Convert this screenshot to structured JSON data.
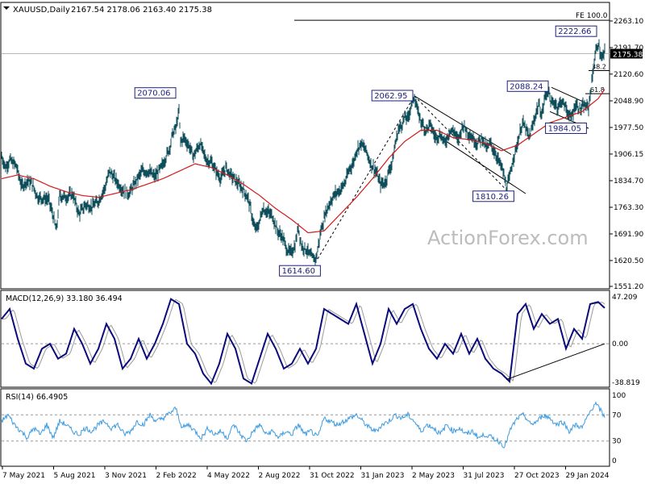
{
  "header": {
    "symbol_label": "XAUUSD,Daily",
    "ohlc": "2167.54 2178.06 2163.40 2175.38"
  },
  "watermark": "ActionForex.com",
  "chart_data": {
    "type": "line",
    "series_kind": "ohlc-bars",
    "price_axis_ticks": [
      "2263.10",
      "2191.70",
      "2120.60",
      "2048.90",
      "1977.50",
      "1906.15",
      "1834.70",
      "1763.30",
      "1691.90",
      "1620.50",
      "1551.20"
    ],
    "price_tick_values": [
      2263.1,
      2191.7,
      2120.6,
      2048.9,
      1977.5,
      1906.15,
      1834.7,
      1763.3,
      1691.9,
      1620.5,
      1551.2
    ],
    "current_price": "2175.38",
    "date_axis_labels": [
      "7 May 2021",
      "5 Aug 2021",
      "3 Nov 2021",
      "2 Feb 2022",
      "4 May 2022",
      "2 Aug 2022",
      "31 Oct 2022",
      "31 Jan 2023",
      "2 May 2023",
      "31 Jul 2023",
      "27 Oct 2023",
      "29 Jan 2024"
    ],
    "price_anchors": [
      [
        0,
        1900
      ],
      [
        5,
        1870
      ],
      [
        10,
        1890
      ],
      [
        18,
        1875
      ],
      [
        25,
        1820
      ],
      [
        32,
        1835
      ],
      [
        38,
        1825
      ],
      [
        45,
        1790
      ],
      [
        58,
        1785
      ],
      [
        64,
        1740
      ],
      [
        68,
        1700
      ],
      [
        72,
        1795
      ],
      [
        80,
        1790
      ],
      [
        88,
        1800
      ],
      [
        96,
        1745
      ],
      [
        104,
        1770
      ],
      [
        112,
        1765
      ],
      [
        120,
        1780
      ],
      [
        128,
        1815
      ],
      [
        134,
        1860
      ],
      [
        142,
        1835
      ],
      [
        150,
        1810
      ],
      [
        158,
        1800
      ],
      [
        166,
        1830
      ],
      [
        174,
        1860
      ],
      [
        182,
        1860
      ],
      [
        190,
        1845
      ],
      [
        198,
        1870
      ],
      [
        204,
        1900
      ],
      [
        208,
        1920
      ],
      [
        212,
        1960
      ],
      [
        216,
        1975
      ],
      [
        220,
        2020
      ],
      [
        222,
        1940
      ],
      [
        226,
        1950
      ],
      [
        232,
        1930
      ],
      [
        238,
        1900
      ],
      [
        246,
        1935
      ],
      [
        254,
        1890
      ],
      [
        260,
        1885
      ],
      [
        266,
        1860
      ],
      [
        272,
        1840
      ],
      [
        278,
        1870
      ],
      [
        284,
        1850
      ],
      [
        292,
        1830
      ],
      [
        300,
        1810
      ],
      [
        306,
        1785
      ],
      [
        310,
        1745
      ],
      [
        314,
        1705
      ],
      [
        318,
        1710
      ],
      [
        324,
        1760
      ],
      [
        330,
        1750
      ],
      [
        336,
        1740
      ],
      [
        342,
        1700
      ],
      [
        348,
        1685
      ],
      [
        354,
        1650
      ],
      [
        358,
        1640
      ],
      [
        364,
        1660
      ],
      [
        368,
        1710
      ],
      [
        372,
        1660
      ],
      [
        378,
        1650
      ],
      [
        384,
        1630
      ],
      [
        390,
        1625
      ],
      [
        396,
        1700
      ],
      [
        402,
        1750
      ],
      [
        408,
        1780
      ],
      [
        414,
        1800
      ],
      [
        420,
        1810
      ],
      [
        426,
        1830
      ],
      [
        432,
        1870
      ],
      [
        436,
        1880
      ],
      [
        440,
        1915
      ],
      [
        446,
        1935
      ],
      [
        452,
        1915
      ],
      [
        458,
        1880
      ],
      [
        464,
        1860
      ],
      [
        470,
        1825
      ],
      [
        476,
        1830
      ],
      [
        480,
        1860
      ],
      [
        484,
        1880
      ],
      [
        488,
        1930
      ],
      [
        492,
        1970
      ],
      [
        496,
        1985
      ],
      [
        500,
        2005
      ],
      [
        504,
        2000
      ],
      [
        508,
        2040
      ],
      [
        512,
        2062
      ],
      [
        516,
        2020
      ],
      [
        520,
        1995
      ],
      [
        526,
        1970
      ],
      [
        532,
        1985
      ],
      [
        538,
        1950
      ],
      [
        544,
        1960
      ],
      [
        550,
        1935
      ],
      [
        556,
        1970
      ],
      [
        562,
        1965
      ],
      [
        566,
        1940
      ],
      [
        572,
        1985
      ],
      [
        578,
        1965
      ],
      [
        584,
        1950
      ],
      [
        590,
        1935
      ],
      [
        596,
        1950
      ],
      [
        602,
        1920
      ],
      [
        606,
        1935
      ],
      [
        612,
        1910
      ],
      [
        618,
        1880
      ],
      [
        622,
        1860
      ],
      [
        626,
        1815
      ],
      [
        630,
        1840
      ],
      [
        634,
        1890
      ],
      [
        638,
        1920
      ],
      [
        642,
        1955
      ],
      [
        646,
        1990
      ],
      [
        650,
        1975
      ],
      [
        654,
        1950
      ],
      [
        658,
        1975
      ],
      [
        662,
        2010
      ],
      [
        666,
        2040
      ],
      [
        670,
        2010
      ],
      [
        674,
        2060
      ],
      [
        678,
        2080
      ],
      [
        682,
        2040
      ],
      [
        686,
        2045
      ],
      [
        690,
        2030
      ],
      [
        694,
        2050
      ],
      [
        700,
        2030
      ],
      [
        706,
        2000
      ],
      [
        712,
        2040
      ],
      [
        718,
        2025
      ],
      [
        722,
        2035
      ],
      [
        728,
        2030
      ],
      [
        732,
        2100
      ],
      [
        736,
        2170
      ],
      [
        740,
        2205
      ],
      [
        744,
        2160
      ],
      [
        748,
        2178
      ]
    ],
    "moving_average_anchors": [
      [
        0,
        1840
      ],
      [
        20,
        1850
      ],
      [
        40,
        1840
      ],
      [
        60,
        1820
      ],
      [
        80,
        1805
      ],
      [
        100,
        1795
      ],
      [
        120,
        1790
      ],
      [
        140,
        1800
      ],
      [
        160,
        1810
      ],
      [
        180,
        1825
      ],
      [
        200,
        1840
      ],
      [
        220,
        1860
      ],
      [
        240,
        1880
      ],
      [
        260,
        1870
      ],
      [
        280,
        1850
      ],
      [
        300,
        1825
      ],
      [
        320,
        1795
      ],
      [
        340,
        1760
      ],
      [
        360,
        1730
      ],
      [
        380,
        1695
      ],
      [
        400,
        1700
      ],
      [
        420,
        1745
      ],
      [
        440,
        1790
      ],
      [
        460,
        1840
      ],
      [
        480,
        1895
      ],
      [
        500,
        1940
      ],
      [
        520,
        1970
      ],
      [
        540,
        1970
      ],
      [
        560,
        1950
      ],
      [
        580,
        1945
      ],
      [
        600,
        1935
      ],
      [
        620,
        1915
      ],
      [
        640,
        1930
      ],
      [
        660,
        1960
      ],
      [
        680,
        1990
      ],
      [
        700,
        2005
      ],
      [
        720,
        2020
      ],
      [
        740,
        2055
      ],
      [
        748,
        2080
      ]
    ],
    "annotations": [
      {
        "label": "2070.06",
        "price": 2070.06,
        "bar": 220
      },
      {
        "label": "1614.60",
        "price": 1614.6,
        "bar": 390
      },
      {
        "label": "2062.95",
        "price": 2062.95,
        "bar": 512
      },
      {
        "label": "1810.26",
        "price": 1810.26,
        "bar": 626
      },
      {
        "label": "2088.24",
        "price": 2088.24,
        "bar": 680
      },
      {
        "label": "1984.05",
        "price": 1984.05,
        "bar": 718
      },
      {
        "label": "2222.66",
        "price": 2222.66,
        "bar": 740
      }
    ],
    "fib_levels": [
      {
        "label": "FE 100.0",
        "price": 2265
      },
      {
        "label": "38.2",
        "price": 2130
      },
      {
        "label": "61.8",
        "price": 2068
      }
    ],
    "macd": {
      "label": "MACD(12,26,9) 33.180 36.494",
      "ticks": [
        "47.209",
        "0.00",
        "-38.819"
      ],
      "tick_values": [
        47.209,
        0,
        -38.819
      ],
      "anchors": [
        [
          0,
          25
        ],
        [
          10,
          35
        ],
        [
          20,
          5
        ],
        [
          30,
          -20
        ],
        [
          40,
          -25
        ],
        [
          50,
          -5
        ],
        [
          60,
          0
        ],
        [
          70,
          -15
        ],
        [
          80,
          -10
        ],
        [
          90,
          15
        ],
        [
          100,
          0
        ],
        [
          110,
          -20
        ],
        [
          120,
          -5
        ],
        [
          130,
          20
        ],
        [
          140,
          5
        ],
        [
          150,
          -25
        ],
        [
          160,
          -15
        ],
        [
          170,
          5
        ],
        [
          180,
          -15
        ],
        [
          190,
          0
        ],
        [
          200,
          20
        ],
        [
          210,
          45
        ],
        [
          220,
          40
        ],
        [
          230,
          0
        ],
        [
          240,
          -10
        ],
        [
          250,
          -30
        ],
        [
          260,
          -40
        ],
        [
          270,
          -20
        ],
        [
          280,
          10
        ],
        [
          290,
          -5
        ],
        [
          300,
          -35
        ],
        [
          310,
          -40
        ],
        [
          320,
          -15
        ],
        [
          330,
          10
        ],
        [
          340,
          -5
        ],
        [
          350,
          -25
        ],
        [
          360,
          -20
        ],
        [
          370,
          -5
        ],
        [
          380,
          -20
        ],
        [
          390,
          -5
        ],
        [
          400,
          35
        ],
        [
          410,
          30
        ],
        [
          420,
          25
        ],
        [
          430,
          20
        ],
        [
          440,
          40
        ],
        [
          450,
          10
        ],
        [
          460,
          -20
        ],
        [
          470,
          0
        ],
        [
          480,
          35
        ],
        [
          490,
          20
        ],
        [
          500,
          35
        ],
        [
          510,
          40
        ],
        [
          520,
          15
        ],
        [
          530,
          -5
        ],
        [
          540,
          -15
        ],
        [
          550,
          0
        ],
        [
          560,
          -10
        ],
        [
          570,
          10
        ],
        [
          580,
          -10
        ],
        [
          590,
          5
        ],
        [
          600,
          -15
        ],
        [
          610,
          -25
        ],
        [
          620,
          -30
        ],
        [
          630,
          -38
        ],
        [
          640,
          30
        ],
        [
          650,
          40
        ],
        [
          660,
          15
        ],
        [
          670,
          30
        ],
        [
          680,
          20
        ],
        [
          690,
          25
        ],
        [
          700,
          -5
        ],
        [
          710,
          15
        ],
        [
          720,
          5
        ],
        [
          730,
          40
        ],
        [
          740,
          42
        ],
        [
          748,
          36
        ]
      ]
    },
    "rsi": {
      "label": "RSI(14) 66.4905",
      "ticks": [
        "100",
        "70",
        "30",
        "0"
      ],
      "tick_values": [
        100,
        70,
        30,
        0
      ],
      "anchors": [
        [
          0,
          60
        ],
        [
          8,
          70
        ],
        [
          16,
          55
        ],
        [
          24,
          45
        ],
        [
          32,
          35
        ],
        [
          40,
          50
        ],
        [
          48,
          40
        ],
        [
          56,
          55
        ],
        [
          64,
          35
        ],
        [
          72,
          60
        ],
        [
          80,
          55
        ],
        [
          88,
          45
        ],
        [
          96,
          40
        ],
        [
          104,
          50
        ],
        [
          112,
          45
        ],
        [
          120,
          55
        ],
        [
          128,
          60
        ],
        [
          136,
          50
        ],
        [
          144,
          55
        ],
        [
          152,
          40
        ],
        [
          160,
          45
        ],
        [
          168,
          60
        ],
        [
          176,
          55
        ],
        [
          184,
          70
        ],
        [
          192,
          60
        ],
        [
          200,
          65
        ],
        [
          208,
          72
        ],
        [
          216,
          80
        ],
        [
          224,
          50
        ],
        [
          232,
          55
        ],
        [
          240,
          45
        ],
        [
          248,
          35
        ],
        [
          256,
          50
        ],
        [
          264,
          40
        ],
        [
          272,
          45
        ],
        [
          280,
          35
        ],
        [
          288,
          55
        ],
        [
          296,
          40
        ],
        [
          304,
          30
        ],
        [
          312,
          45
        ],
        [
          320,
          55
        ],
        [
          328,
          40
        ],
        [
          336,
          45
        ],
        [
          344,
          35
        ],
        [
          352,
          45
        ],
        [
          360,
          40
        ],
        [
          368,
          55
        ],
        [
          376,
          40
        ],
        [
          384,
          45
        ],
        [
          392,
          35
        ],
        [
          400,
          65
        ],
        [
          408,
          60
        ],
        [
          416,
          55
        ],
        [
          424,
          60
        ],
        [
          432,
          65
        ],
        [
          440,
          70
        ],
        [
          448,
          60
        ],
        [
          456,
          50
        ],
        [
          464,
          45
        ],
        [
          472,
          55
        ],
        [
          480,
          60
        ],
        [
          488,
          70
        ],
        [
          496,
          65
        ],
        [
          504,
          70
        ],
        [
          512,
          60
        ],
        [
          520,
          45
        ],
        [
          528,
          55
        ],
        [
          536,
          50
        ],
        [
          544,
          40
        ],
        [
          552,
          55
        ],
        [
          560,
          45
        ],
        [
          568,
          50
        ],
        [
          576,
          40
        ],
        [
          584,
          45
        ],
        [
          592,
          35
        ],
        [
          600,
          40
        ],
        [
          608,
          35
        ],
        [
          616,
          30
        ],
        [
          624,
          22
        ],
        [
          632,
          50
        ],
        [
          640,
          65
        ],
        [
          648,
          70
        ],
        [
          656,
          55
        ],
        [
          664,
          60
        ],
        [
          672,
          70
        ],
        [
          680,
          65
        ],
        [
          688,
          55
        ],
        [
          696,
          60
        ],
        [
          704,
          45
        ],
        [
          712,
          55
        ],
        [
          720,
          50
        ],
        [
          728,
          70
        ],
        [
          736,
          88
        ],
        [
          744,
          75
        ],
        [
          748,
          66
        ]
      ]
    }
  }
}
